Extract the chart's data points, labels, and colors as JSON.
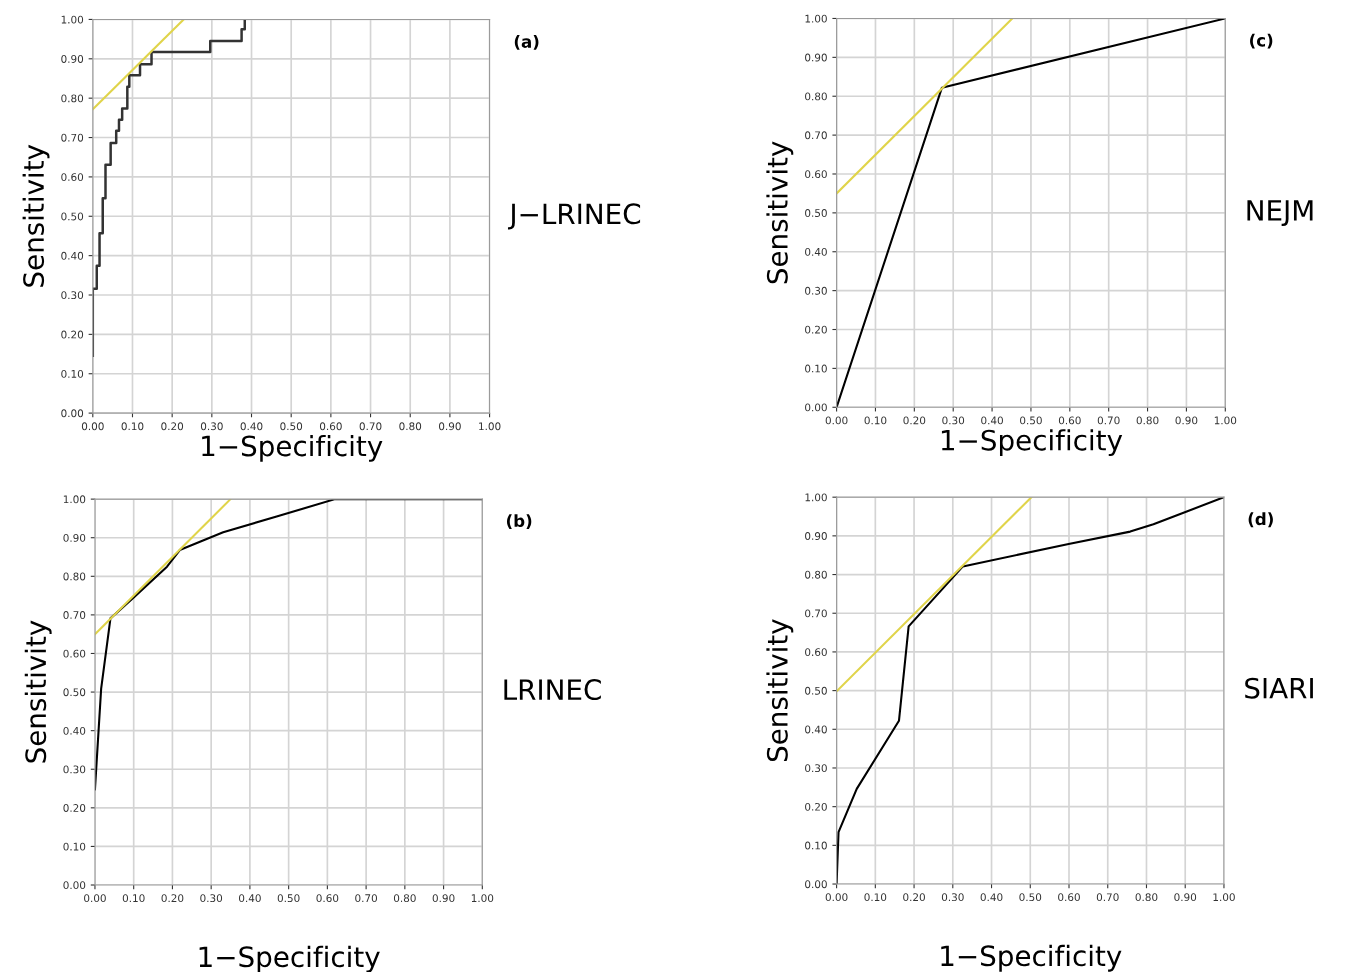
{
  "chart_data": [
    {
      "type": "line",
      "annotations": [
        "(a)",
        "J−LRINEC"
      ],
      "xlabel": "1−Specificity",
      "ylabel": "Sensitivity",
      "xlim": [
        0,
        1
      ],
      "ylim": [
        0,
        1
      ],
      "grid": true,
      "xticks": [
        {
          "value": 0,
          "label": "0.00"
        },
        {
          "value": 0.1,
          "label": "0.10"
        },
        {
          "value": 0.2,
          "label": "0.20"
        },
        {
          "value": 0.3,
          "label": "0.30"
        },
        {
          "value": 0.4,
          "label": "0.40"
        },
        {
          "value": 0.5,
          "label": "0.50"
        },
        {
          "value": 0.6,
          "label": "0.60"
        },
        {
          "value": 0.7,
          "label": "0.70"
        },
        {
          "value": 0.8,
          "label": "0.80"
        },
        {
          "value": 0.9,
          "label": "0.90"
        },
        {
          "value": 1,
          "label": "1.00"
        }
      ],
      "yticks": [
        {
          "value": 0,
          "label": "0.00"
        },
        {
          "value": 0.1,
          "label": "0.10"
        },
        {
          "value": 0.2,
          "label": "0.20"
        },
        {
          "value": 0.3,
          "label": "0.30"
        },
        {
          "value": 0.4,
          "label": "0.40"
        },
        {
          "value": 0.5,
          "label": "0.50"
        },
        {
          "value": 0.6,
          "label": "0.60"
        },
        {
          "value": 0.7,
          "label": "0.70"
        },
        {
          "value": 0.8,
          "label": "0.80"
        },
        {
          "value": 0.9,
          "label": "0.90"
        },
        {
          "value": 1,
          "label": "1.00"
        }
      ],
      "series": [
        {
          "type": "step",
          "color": "#333333",
          "x": [
            0,
            0,
            0.01,
            0.017,
            0.025,
            0.032,
            0.045,
            0.059,
            0.066,
            0.074,
            0.087,
            0.092,
            0.119,
            0.148,
            0.296,
            0.375,
            0.383
          ],
          "values": [
            0.146,
            0.316,
            0.374,
            0.457,
            0.546,
            0.631,
            0.686,
            0.717,
            0.745,
            0.774,
            0.829,
            0.858,
            0.886,
            0.917,
            0.945,
            0.975,
            1.0
          ]
        },
        {
          "color": "#e0d44a",
          "x": [
            0,
            0.229
          ],
          "values": [
            0.772,
            1.0
          ]
        }
      ]
    },
    {
      "type": "line",
      "annotations": [
        "(c)",
        "NEJM"
      ],
      "xlabel": "1−Specificity",
      "ylabel": "Sensitivity",
      "xlim": [
        0,
        1
      ],
      "ylim": [
        0,
        1
      ],
      "grid": true,
      "xticks": [
        {
          "value": 0,
          "label": "0.00"
        },
        {
          "value": 0.1,
          "label": "0.10"
        },
        {
          "value": 0.2,
          "label": "0.20"
        },
        {
          "value": 0.3,
          "label": "0.30"
        },
        {
          "value": 0.4,
          "label": "0.40"
        },
        {
          "value": 0.5,
          "label": "0.50"
        },
        {
          "value": 0.6,
          "label": "0.60"
        },
        {
          "value": 0.7,
          "label": "0.70"
        },
        {
          "value": 0.8,
          "label": "0.80"
        },
        {
          "value": 0.9,
          "label": "0.90"
        },
        {
          "value": 1,
          "label": "1.00"
        }
      ],
      "yticks": [
        {
          "value": 0,
          "label": "0.00"
        },
        {
          "value": 0.1,
          "label": "0.10"
        },
        {
          "value": 0.2,
          "label": "0.20"
        },
        {
          "value": 0.3,
          "label": "0.30"
        },
        {
          "value": 0.4,
          "label": "0.40"
        },
        {
          "value": 0.5,
          "label": "0.50"
        },
        {
          "value": 0.6,
          "label": "0.60"
        },
        {
          "value": 0.7,
          "label": "0.70"
        },
        {
          "value": 0.8,
          "label": "0.80"
        },
        {
          "value": 0.9,
          "label": "0.90"
        },
        {
          "value": 1,
          "label": "1.00"
        }
      ],
      "series": [
        {
          "color": "#000000",
          "x": [
            0,
            0.271,
            1
          ],
          "values": [
            0,
            0.822,
            1
          ]
        },
        {
          "color": "#e0d44a",
          "x": [
            0,
            0.452
          ],
          "values": [
            0.55,
            1.0
          ]
        }
      ]
    },
    {
      "type": "line",
      "annotations": [
        "(b)",
        "LRINEC"
      ],
      "xlabel": "1−Specificity",
      "ylabel": "Sensitivity",
      "xlim": [
        0,
        1
      ],
      "ylim": [
        0,
        1
      ],
      "grid": true,
      "xticks": [
        {
          "value": 0,
          "label": "0.00"
        },
        {
          "value": 0.1,
          "label": "0.10"
        },
        {
          "value": 0.2,
          "label": "0.20"
        },
        {
          "value": 0.3,
          "label": "0.30"
        },
        {
          "value": 0.4,
          "label": "0.40"
        },
        {
          "value": 0.5,
          "label": "0.50"
        },
        {
          "value": 0.6,
          "label": "0.60"
        },
        {
          "value": 0.7,
          "label": "0.70"
        },
        {
          "value": 0.8,
          "label": "0.80"
        },
        {
          "value": 0.9,
          "label": "0.90"
        },
        {
          "value": 1,
          "label": "1.00"
        }
      ],
      "yticks": [
        {
          "value": 0,
          "label": "0.00"
        },
        {
          "value": 0.1,
          "label": "0.10"
        },
        {
          "value": 0.2,
          "label": "0.20"
        },
        {
          "value": 0.3,
          "label": "0.30"
        },
        {
          "value": 0.4,
          "label": "0.40"
        },
        {
          "value": 0.5,
          "label": "0.50"
        },
        {
          "value": 0.6,
          "label": "0.60"
        },
        {
          "value": 0.7,
          "label": "0.70"
        },
        {
          "value": 0.8,
          "label": "0.80"
        },
        {
          "value": 0.9,
          "label": "0.90"
        },
        {
          "value": 1,
          "label": "1.00"
        }
      ],
      "series": [
        {
          "color": "#000000",
          "x": [
            0,
            0.016,
            0.04,
            0.103,
            0.186,
            0.219,
            0.331,
            0.469,
            0.62,
            1.0
          ],
          "values": [
            0.248,
            0.509,
            0.691,
            0.748,
            0.825,
            0.868,
            0.914,
            0.955,
            1.0,
            1.0
          ]
        },
        {
          "color": "#e0d44a",
          "x": [
            0,
            0.35
          ],
          "values": [
            0.65,
            1.0
          ]
        }
      ]
    },
    {
      "type": "line",
      "annotations": [
        "(d)",
        "SIARI"
      ],
      "xlabel": "1−Specificity",
      "ylabel": "Sensitivity",
      "xlim": [
        0,
        1
      ],
      "ylim": [
        0,
        1
      ],
      "grid": true,
      "xticks": [
        {
          "value": 0,
          "label": "0.00"
        },
        {
          "value": 0.1,
          "label": "0.10"
        },
        {
          "value": 0.2,
          "label": "0.20"
        },
        {
          "value": 0.3,
          "label": "0.30"
        },
        {
          "value": 0.4,
          "label": "0.40"
        },
        {
          "value": 0.5,
          "label": "0.50"
        },
        {
          "value": 0.6,
          "label": "0.60"
        },
        {
          "value": 0.7,
          "label": "0.70"
        },
        {
          "value": 0.8,
          "label": "0.80"
        },
        {
          "value": 0.9,
          "label": "0.90"
        },
        {
          "value": 1,
          "label": "1.00"
        }
      ],
      "yticks": [
        {
          "value": 0,
          "label": "0.00"
        },
        {
          "value": 0.1,
          "label": "0.10"
        },
        {
          "value": 0.2,
          "label": "0.20"
        },
        {
          "value": 0.3,
          "label": "0.30"
        },
        {
          "value": 0.4,
          "label": "0.40"
        },
        {
          "value": 0.5,
          "label": "0.50"
        },
        {
          "value": 0.6,
          "label": "0.60"
        },
        {
          "value": 0.7,
          "label": "0.70"
        },
        {
          "value": 0.8,
          "label": "0.80"
        },
        {
          "value": 0.9,
          "label": "0.90"
        },
        {
          "value": 1,
          "label": "1.00"
        }
      ],
      "series": [
        {
          "color": "#000000",
          "x": [
            0,
            0.005,
            0.052,
            0.161,
            0.186,
            0.326,
            0.599,
            0.758,
            0.818,
            0.904,
            1.0
          ],
          "values": [
            0,
            0.134,
            0.246,
            0.422,
            0.666,
            0.821,
            0.879,
            0.911,
            0.93,
            0.963,
            1.0
          ]
        },
        {
          "color": "#e0d44a",
          "x": [
            0,
            0.503
          ],
          "values": [
            0.498,
            1.0
          ]
        }
      ]
    }
  ]
}
